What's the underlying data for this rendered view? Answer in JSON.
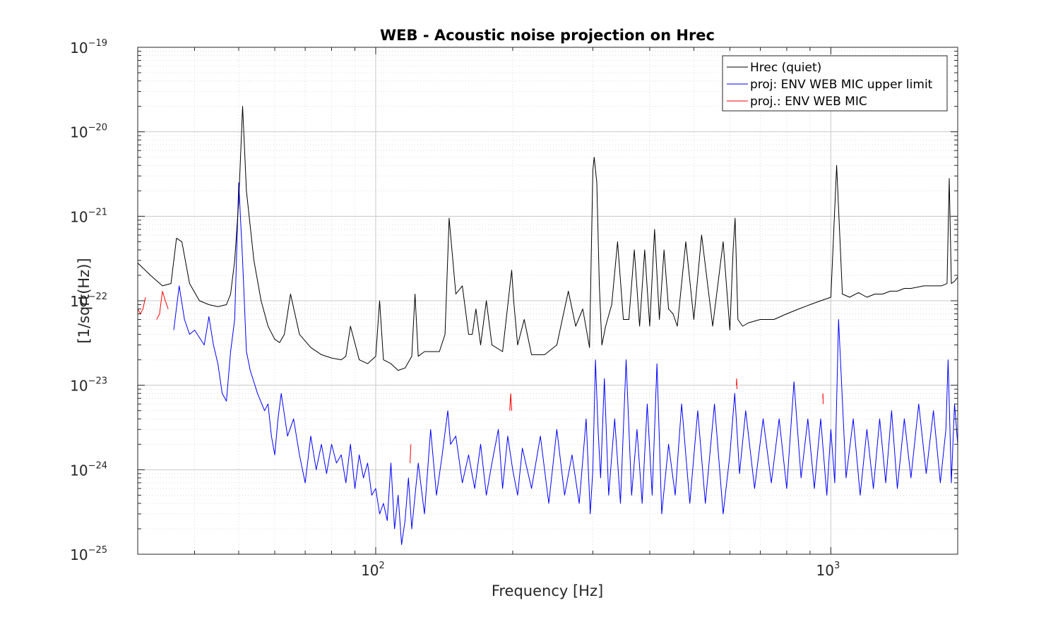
{
  "chart_data": {
    "type": "line",
    "title": "WEB - Acoustic noise projection on Hrec",
    "xlabel": "Frequency [Hz]",
    "ylabel": "[1/sqrt(Hz)]",
    "xscale": "log",
    "yscale": "log",
    "xlim": [
      30,
      1900
    ],
    "ylim": [
      1e-25,
      1e-19
    ],
    "grid": "on (major and minor, dotted)",
    "legend_position": "top-right",
    "x_ticks": [
      {
        "value": 100,
        "base": "10",
        "exp": "2"
      },
      {
        "value": 1000,
        "base": "10",
        "exp": "3"
      }
    ],
    "y_ticks": [
      {
        "value": 1e-19,
        "base": "10",
        "exp": "−19"
      },
      {
        "value": 1e-20,
        "base": "10",
        "exp": "−20"
      },
      {
        "value": 1e-21,
        "base": "10",
        "exp": "−21"
      },
      {
        "value": 1e-22,
        "base": "10",
        "exp": "−22"
      },
      {
        "value": 1e-23,
        "base": "10",
        "exp": "−23"
      },
      {
        "value": 1e-24,
        "base": "10",
        "exp": "−24"
      },
      {
        "value": 1e-25,
        "base": "10",
        "exp": "−25"
      }
    ],
    "series": [
      {
        "name": "Hrec (quiet)",
        "color": "#000000",
        "x": [
          30,
          32,
          34,
          35.5,
          36.5,
          37.5,
          39,
          41,
          43,
          45,
          47,
          48,
          49,
          50,
          51,
          52,
          54,
          56,
          58,
          60,
          61.5,
          63,
          65,
          68,
          72,
          76,
          80,
          84,
          86,
          88,
          92,
          96,
          100,
          102,
          104,
          108,
          112,
          116,
          120,
          122,
          124,
          128,
          133,
          138,
          142,
          145,
          150,
          155,
          160,
          163,
          166,
          170,
          175,
          180,
          190,
          199,
          201,
          205,
          212,
          220,
          235,
          250,
          265,
          275,
          285,
          295,
          300,
          302,
          306,
          310,
          314,
          320,
          330,
          340,
          350,
          360,
          370,
          380,
          390,
          400,
          410,
          420,
          430,
          440,
          450,
          460,
          480,
          500,
          520,
          550,
          580,
          600,
          610,
          616,
          625,
          640,
          660,
          700,
          750,
          800,
          850,
          900,
          950,
          1000,
          1030,
          1060,
          1100,
          1150,
          1200,
          1250,
          1300,
          1350,
          1400,
          1450,
          1500,
          1550,
          1600,
          1650,
          1700,
          1750,
          1800,
          1820,
          1840,
          1870,
          1900
        ],
        "values": [
          2.8e-22,
          2e-22,
          1.5e-22,
          1.6e-22,
          5.5e-22,
          5e-22,
          1.6e-22,
          1e-22,
          9e-23,
          8.5e-23,
          9e-23,
          1.2e-22,
          3e-22,
          1.5e-21,
          2e-20,
          2e-21,
          3e-22,
          1e-22,
          5e-23,
          3.5e-23,
          3.2e-23,
          4e-23,
          1.2e-22,
          4e-23,
          2.8e-23,
          2.3e-23,
          2.1e-23,
          2e-23,
          2.2e-23,
          5e-23,
          2e-23,
          1.8e-23,
          2.2e-23,
          1e-22,
          2e-23,
          1.8e-23,
          1.5e-23,
          1.6e-23,
          2.2e-23,
          1.2e-22,
          2.2e-23,
          2.5e-23,
          2.5e-23,
          2.5e-23,
          4e-23,
          9.5e-22,
          1.2e-22,
          1.5e-22,
          4e-23,
          4e-23,
          8e-23,
          3e-23,
          1e-22,
          3e-23,
          2.5e-23,
          2.3e-22,
          1e-22,
          3e-23,
          6e-23,
          2.3e-23,
          2.3e-23,
          3e-23,
          1.3e-22,
          5e-23,
          8e-23,
          2.8e-23,
          3.5e-21,
          5e-21,
          2.5e-21,
          1.5e-22,
          3e-23,
          5e-23,
          9e-23,
          5e-22,
          6e-23,
          6e-23,
          4e-22,
          5e-23,
          4e-22,
          5e-23,
          7e-22,
          6e-23,
          4e-22,
          8e-23,
          7e-23,
          5e-23,
          5e-22,
          6e-23,
          6e-22,
          5e-23,
          5e-22,
          4.5e-23,
          4e-22,
          9.5e-22,
          6e-23,
          5e-23,
          5.5e-23,
          6e-23,
          6e-23,
          7e-23,
          8e-23,
          9e-23,
          1e-22,
          1.1e-22,
          4e-21,
          1.2e-22,
          1.1e-22,
          1.25e-22,
          1.1e-22,
          1.2e-22,
          1.2e-22,
          1.3e-22,
          1.3e-22,
          1.4e-22,
          1.4e-22,
          1.45e-22,
          1.5e-22,
          1.5e-22,
          1.5e-22,
          1.5e-22,
          1.6e-22,
          2.8e-21,
          1.6e-22,
          1.7e-22,
          1.9e-22
        ]
      },
      {
        "name": "proj: ENV WEB MIC upper limit",
        "color": "#0000ff",
        "x": [
          36,
          37,
          38,
          39,
          40,
          42,
          43,
          44,
          45,
          46,
          47,
          48,
          49,
          50,
          51,
          52,
          53,
          55,
          57,
          58,
          59,
          60,
          61,
          62,
          64,
          66,
          68,
          70,
          72,
          74,
          76,
          78,
          80,
          82,
          84,
          86,
          88,
          90,
          92,
          94,
          96,
          98,
          100,
          102,
          104,
          106,
          108,
          110,
          112,
          114,
          116,
          118,
          120,
          124,
          128,
          132,
          136,
          140,
          144,
          146,
          150,
          155,
          160,
          165,
          170,
          175,
          180,
          186,
          190,
          195,
          200,
          205,
          210,
          220,
          230,
          240,
          250,
          260,
          270,
          280,
          290,
          296,
          300,
          304,
          308,
          312,
          318,
          325,
          335,
          345,
          355,
          365,
          375,
          385,
          395,
          405,
          415,
          425,
          440,
          455,
          470,
          490,
          510,
          530,
          555,
          580,
          600,
          615,
          630,
          650,
          680,
          710,
          740,
          770,
          800,
          830,
          860,
          890,
          920,
          950,
          980,
          1000,
          1020,
          1040,
          1080,
          1120,
          1160,
          1200,
          1240,
          1280,
          1320,
          1360,
          1400,
          1450,
          1500,
          1560,
          1620,
          1680,
          1740,
          1790,
          1810,
          1840,
          1870,
          1900
        ],
        "values": [
          4.5e-23,
          1.5e-22,
          6e-23,
          4e-23,
          4.5e-23,
          3e-23,
          6.5e-23,
          3e-23,
          1.8e-23,
          8e-24,
          6.5e-24,
          2.5e-23,
          6e-23,
          2.5e-21,
          3e-22,
          2.5e-23,
          1.5e-23,
          8e-24,
          5e-24,
          6e-24,
          2.5e-24,
          1.5e-24,
          4e-24,
          8e-24,
          2.5e-24,
          4e-24,
          1.5e-24,
          7e-25,
          2.5e-24,
          1e-24,
          2e-24,
          9e-25,
          2e-24,
          1.2e-24,
          1.5e-24,
          7e-25,
          2e-24,
          6e-25,
          1.5e-24,
          8e-25,
          1.2e-24,
          5e-25,
          6e-25,
          3e-25,
          4e-25,
          2.5e-25,
          1.2e-24,
          2e-25,
          5e-25,
          1.3e-25,
          2.5e-25,
          8e-25,
          2e-25,
          1.2e-24,
          3e-25,
          3e-24,
          5e-25,
          1.5e-24,
          5e-24,
          2e-24,
          2.5e-24,
          7e-25,
          1.5e-24,
          6e-25,
          2e-24,
          5e-25,
          1.2e-24,
          3e-24,
          6e-25,
          2.5e-24,
          1e-24,
          5e-25,
          1.8e-24,
          6e-25,
          2.5e-24,
          4e-25,
          3e-24,
          5e-25,
          1.5e-24,
          4e-25,
          4e-24,
          3e-25,
          1e-24,
          2e-23,
          3e-24,
          8e-25,
          1.2e-23,
          5e-25,
          4e-24,
          4e-25,
          2e-23,
          5e-25,
          3e-24,
          4e-25,
          6e-24,
          5e-25,
          1.8e-23,
          3e-25,
          2e-24,
          5e-25,
          6e-24,
          4e-25,
          5e-24,
          4e-25,
          6e-24,
          3e-25,
          1.5e-24,
          8e-24,
          9e-25,
          5e-24,
          6e-25,
          4e-24,
          7e-25,
          4e-24,
          6e-25,
          1.1e-23,
          8e-25,
          4e-24,
          6e-25,
          4e-24,
          5e-25,
          3e-24,
          7e-25,
          6e-23,
          8e-25,
          4e-24,
          5e-25,
          3e-24,
          6e-25,
          4e-24,
          7e-25,
          5e-24,
          6e-25,
          4e-24,
          8e-25,
          6e-24,
          9e-25,
          5e-24,
          7e-25,
          3e-24,
          2e-23,
          7e-25,
          6e-24,
          2e-24
        ]
      },
      {
        "name": "proj.: ENV WEB MIC",
        "color": "#ff0000",
        "segments": [
          {
            "x": [
              30,
              30.4,
              30.8,
              31.2
            ],
            "values": [
              8e-23,
              7e-23,
              8e-23,
              1.1e-22
            ]
          },
          {
            "x": [
              33,
              33.5,
              34,
              34.5,
              35
            ],
            "values": [
              6e-23,
              7e-23,
              1.3e-22,
              1e-22,
              8e-23
            ]
          },
          {
            "x": [
              119,
              119.5
            ],
            "values": [
              1.2e-24,
              2e-24
            ]
          },
          {
            "x": [
              197,
              198,
              199
            ],
            "values": [
              5e-24,
              8e-24,
              5e-24
            ]
          },
          {
            "x": [
              620,
              621,
              622
            ],
            "values": [
              1e-23,
              1.2e-23,
              9e-24
            ]
          },
          {
            "x": [
              960,
              961,
              962
            ],
            "values": [
              7e-24,
              8e-24,
              6e-24
            ]
          }
        ]
      }
    ]
  }
}
